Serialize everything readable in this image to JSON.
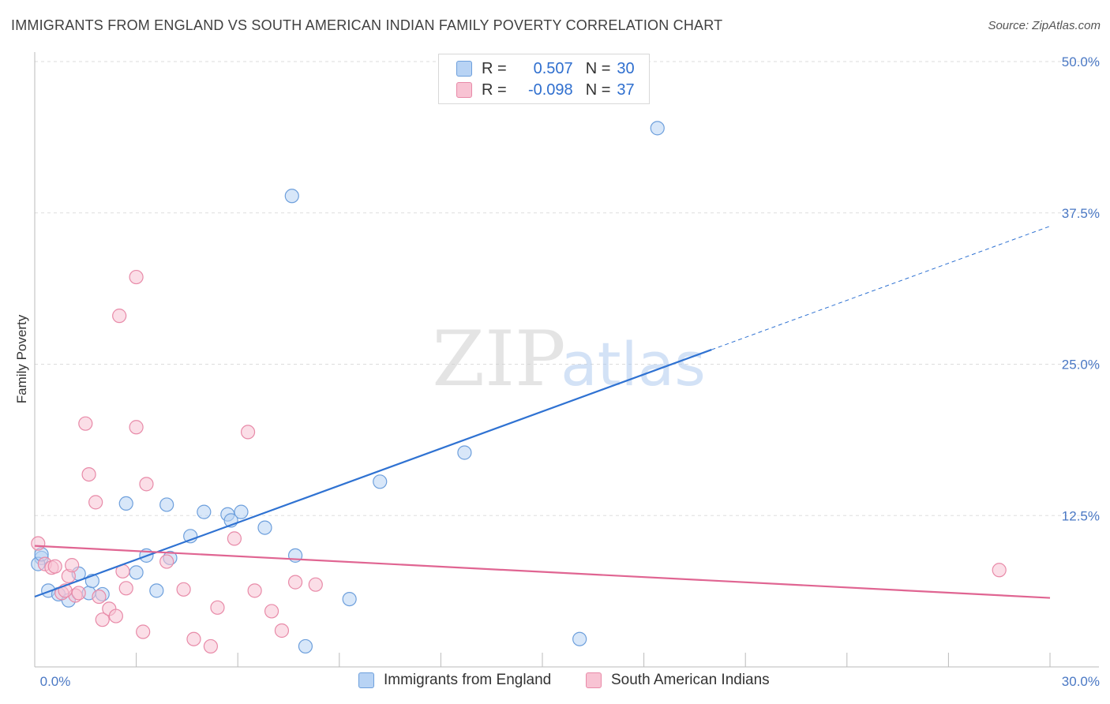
{
  "header": {
    "title": "IMMIGRANTS FROM ENGLAND VS SOUTH AMERICAN INDIAN FAMILY POVERTY CORRELATION CHART",
    "source": "Source: ZipAtlas.com"
  },
  "watermark": {
    "zip": "ZIP",
    "atlas": "atlas"
  },
  "legend_top": {
    "rows": [
      {
        "r_label": "R =",
        "r_value": "0.507",
        "n_label": "N =",
        "n_value": "30"
      },
      {
        "r_label": "R =",
        "r_value": "-0.098",
        "n_label": "N =",
        "n_value": "37"
      }
    ]
  },
  "legend_bottom": {
    "items": [
      {
        "label": "Immigrants from England"
      },
      {
        "label": "South American Indians"
      }
    ]
  },
  "colors": {
    "blue_fill": "#b8d3f4",
    "blue_stroke": "#6d9fdc",
    "blue_line": "#2f72d2",
    "pink_fill": "#f8c3d3",
    "pink_stroke": "#e88aa8",
    "pink_line": "#e06592",
    "tick_text": "#4a78c4",
    "grid": "#dddddd"
  },
  "chart_data": {
    "type": "scatter",
    "title": "IMMIGRANTS FROM ENGLAND VS SOUTH AMERICAN INDIAN FAMILY POVERTY CORRELATION CHART",
    "xlabel": "",
    "ylabel": "Family Poverty",
    "xlim": [
      0,
      30
    ],
    "ylim": [
      0,
      50
    ],
    "x_tick_labels": [
      "0.0%",
      "30.0%"
    ],
    "y_ticks": [
      12.5,
      25.0,
      37.5,
      50.0
    ],
    "y_tick_labels": [
      "12.5%",
      "25.0%",
      "37.5%",
      "50.0%"
    ],
    "grid": true,
    "legend_position": "top-center",
    "series": [
      {
        "name": "Immigrants from England",
        "color": "blue",
        "r": 0.507,
        "n": 30,
        "trend": {
          "x0": 0,
          "y0": 5.8,
          "x1": 20,
          "y1": 26.2,
          "dashed_to_x": 30,
          "dashed_to_y": 36.4
        },
        "points": [
          [
            0.2,
            9.0
          ],
          [
            0.4,
            6.3
          ],
          [
            0.7,
            6.0
          ],
          [
            1.0,
            5.5
          ],
          [
            1.3,
            7.7
          ],
          [
            1.6,
            6.1
          ],
          [
            1.7,
            7.1
          ],
          [
            2.0,
            6.0
          ],
          [
            2.7,
            13.5
          ],
          [
            3.0,
            7.8
          ],
          [
            3.3,
            9.2
          ],
          [
            3.6,
            6.3
          ],
          [
            4.0,
            9.0
          ],
          [
            3.9,
            13.4
          ],
          [
            4.6,
            10.8
          ],
          [
            5.0,
            12.8
          ],
          [
            5.7,
            12.6
          ],
          [
            5.8,
            12.1
          ],
          [
            6.1,
            12.8
          ],
          [
            6.8,
            11.5
          ],
          [
            7.6,
            38.9
          ],
          [
            7.7,
            9.2
          ],
          [
            8.0,
            1.7
          ],
          [
            9.3,
            5.6
          ],
          [
            10.2,
            15.3
          ],
          [
            12.7,
            17.7
          ],
          [
            16.1,
            2.3
          ],
          [
            18.4,
            44.5
          ],
          [
            0.1,
            8.5
          ],
          [
            0.2,
            9.3
          ]
        ]
      },
      {
        "name": "South American Indians",
        "color": "pink",
        "r": -0.098,
        "n": 37,
        "trend": {
          "x0": 0,
          "y0": 10.0,
          "x1": 30,
          "y1": 5.7
        },
        "points": [
          [
            0.1,
            10.2
          ],
          [
            0.3,
            8.5
          ],
          [
            0.5,
            8.2
          ],
          [
            0.6,
            8.3
          ],
          [
            0.8,
            6.1
          ],
          [
            1.0,
            7.5
          ],
          [
            1.1,
            8.4
          ],
          [
            1.2,
            5.9
          ],
          [
            1.3,
            6.1
          ],
          [
            1.5,
            20.1
          ],
          [
            1.6,
            15.9
          ],
          [
            1.8,
            13.6
          ],
          [
            1.9,
            5.8
          ],
          [
            2.0,
            3.9
          ],
          [
            2.2,
            4.8
          ],
          [
            2.4,
            4.2
          ],
          [
            2.5,
            29.0
          ],
          [
            2.6,
            7.9
          ],
          [
            2.7,
            6.5
          ],
          [
            3.0,
            32.2
          ],
          [
            3.0,
            19.8
          ],
          [
            3.2,
            2.9
          ],
          [
            3.3,
            15.1
          ],
          [
            3.9,
            8.7
          ],
          [
            4.4,
            6.4
          ],
          [
            4.7,
            2.3
          ],
          [
            5.2,
            1.7
          ],
          [
            5.4,
            4.9
          ],
          [
            5.9,
            10.6
          ],
          [
            6.3,
            19.4
          ],
          [
            6.5,
            6.3
          ],
          [
            7.0,
            4.6
          ],
          [
            7.3,
            3.0
          ],
          [
            7.7,
            7.0
          ],
          [
            8.3,
            6.8
          ],
          [
            28.5,
            8.0
          ],
          [
            0.9,
            6.3
          ]
        ]
      }
    ]
  }
}
